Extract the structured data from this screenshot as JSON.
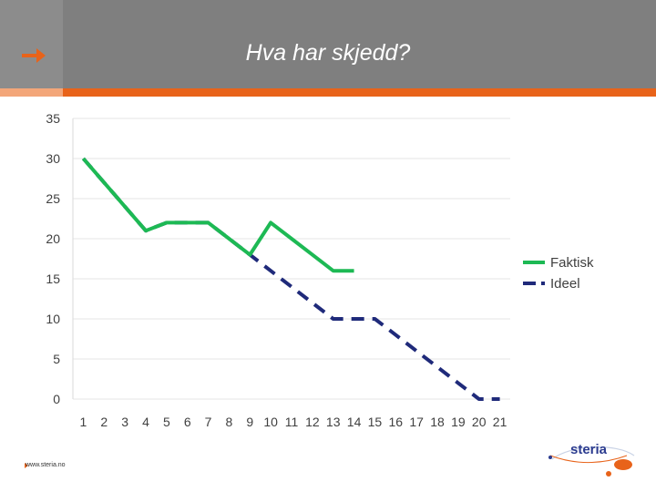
{
  "header": {
    "title": "Hva har skjedd?"
  },
  "footer": {
    "url": "www.steria.no"
  },
  "logo": {
    "text": "steria"
  },
  "colors": {
    "header_bg": "#7f7f7f",
    "accent": "#e8631a",
    "faktisk": "#1db954",
    "ideel": "#1f2a7a"
  },
  "chart_data": {
    "type": "line",
    "title": "",
    "xlabel": "",
    "ylabel": "",
    "categories": [
      "1",
      "2",
      "3",
      "4",
      "5",
      "6",
      "7",
      "8",
      "9",
      "10",
      "11",
      "12",
      "13",
      "14",
      "15",
      "16",
      "17",
      "18",
      "19",
      "20",
      "21"
    ],
    "ylim": [
      0,
      35
    ],
    "yticks": [
      0,
      5,
      10,
      15,
      20,
      25,
      30,
      35
    ],
    "grid": true,
    "legend": "right",
    "series": [
      {
        "name": "Faktisk",
        "style": "solid",
        "color": "#1db954",
        "values": [
          30,
          27,
          24,
          21,
          22,
          22,
          22,
          20,
          18,
          22,
          20,
          18,
          16,
          16,
          null,
          null,
          null,
          null,
          null,
          null,
          null
        ]
      },
      {
        "name": "Ideel",
        "style": "dashed",
        "color": "#1f2a7a",
        "values": [
          30,
          27,
          24,
          21,
          22,
          22,
          22,
          20,
          18,
          16,
          14,
          12,
          10,
          10,
          10,
          8,
          6,
          4,
          2,
          0,
          0
        ]
      }
    ]
  }
}
